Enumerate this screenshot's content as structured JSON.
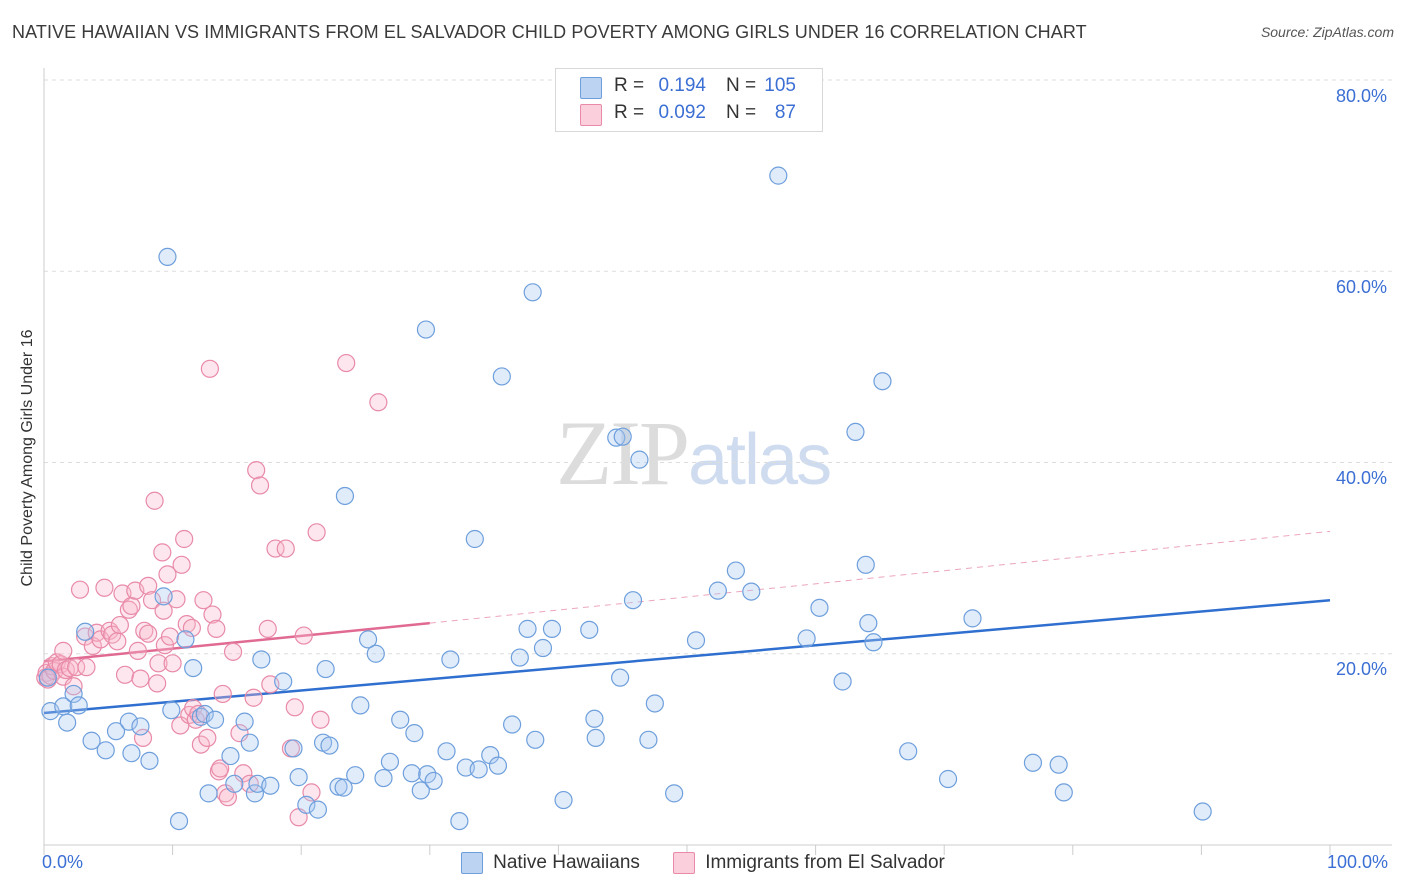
{
  "title": "NATIVE HAWAIIAN VS IMMIGRANTS FROM EL SALVADOR CHILD POVERTY AMONG GIRLS UNDER 16 CORRELATION CHART",
  "source": "Source: ZipAtlas.com",
  "watermark": {
    "zip": "ZIP",
    "atlas": "atlas"
  },
  "stats": [
    {
      "r_label": "R =",
      "r": "0.194",
      "n_label": "N =",
      "n": "105"
    },
    {
      "r_label": "R =",
      "r": "0.092",
      "n_label": "N =",
      "n": "87"
    }
  ],
  "legend": [
    "Native Hawaiians",
    "Immigrants from El Salvador"
  ],
  "colors": {
    "blue_fill": "#a8c8f0",
    "blue_stroke": "#6e9fdc",
    "blue_line": "#2f6fcf",
    "pink_fill": "#f8b8cc",
    "pink_stroke": "#e88aa8",
    "pink_line": "#e06a92",
    "axis_text": "#3b6fd4",
    "grid": "#dddddd"
  },
  "chart_data": {
    "type": "scatter",
    "title": "NATIVE HAWAIIAN VS IMMIGRANTS FROM EL SALVADOR CHILD POVERTY AMONG GIRLS UNDER 16 CORRELATION CHART",
    "xlabel": "",
    "ylabel": "Child Poverty Among Girls Under 16",
    "xlim": [
      0,
      100
    ],
    "ylim": [
      0,
      80
    ],
    "x_tick_labels": [
      "0.0%",
      "100.0%"
    ],
    "y_ticks": [
      20,
      40,
      60,
      80
    ],
    "y_tick_labels": [
      "20.0%",
      "40.0%",
      "60.0%",
      "80.0%"
    ],
    "series": [
      {
        "name": "Native Hawaiians",
        "R": 0.194,
        "N": 105,
        "trend": {
          "x": [
            0,
            100
          ],
          "y": [
            13.8,
            25.6
          ]
        },
        "points": [
          [
            0.3,
            17.5
          ],
          [
            0.5,
            14
          ],
          [
            1.5,
            14.5
          ],
          [
            1.8,
            12.8
          ],
          [
            2.3,
            15.8
          ],
          [
            2.7,
            14.6
          ],
          [
            3.2,
            22.3
          ],
          [
            3.7,
            10.9
          ],
          [
            4.8,
            9.9
          ],
          [
            5.6,
            11.9
          ],
          [
            6.6,
            12.9
          ],
          [
            6.8,
            9.6
          ],
          [
            7.5,
            12.4
          ],
          [
            8.2,
            8.8
          ],
          [
            9.3,
            26
          ],
          [
            9.6,
            61.5
          ],
          [
            9.9,
            14.1
          ],
          [
            10.5,
            2.5
          ],
          [
            11,
            21.5
          ],
          [
            11.6,
            18.5
          ],
          [
            12.2,
            13.4
          ],
          [
            12.5,
            13.7
          ],
          [
            12.8,
            5.4
          ],
          [
            13.3,
            13.1
          ],
          [
            14.5,
            9.3
          ],
          [
            14.8,
            6.4
          ],
          [
            15.6,
            12.9
          ],
          [
            16,
            10.7
          ],
          [
            16.4,
            5.4
          ],
          [
            16.6,
            6.4
          ],
          [
            16.9,
            19.4
          ],
          [
            17.6,
            6.2
          ],
          [
            18.6,
            17.1
          ],
          [
            19.4,
            10.1
          ],
          [
            19.8,
            7.1
          ],
          [
            20.4,
            4.2
          ],
          [
            21.3,
            3.7
          ],
          [
            21.7,
            10.7
          ],
          [
            21.9,
            18.4
          ],
          [
            22.2,
            10.4
          ],
          [
            22.9,
            6.1
          ],
          [
            23.3,
            6
          ],
          [
            23.4,
            36.5
          ],
          [
            24.2,
            7.3
          ],
          [
            24.6,
            14.6
          ],
          [
            25.2,
            21.5
          ],
          [
            25.8,
            20
          ],
          [
            26.4,
            7
          ],
          [
            26.9,
            8.7
          ],
          [
            27.7,
            13.1
          ],
          [
            28.6,
            7.5
          ],
          [
            28.8,
            11.7
          ],
          [
            29.3,
            5.7
          ],
          [
            29.8,
            7.4
          ],
          [
            29.7,
            53.9
          ],
          [
            30.3,
            6.7
          ],
          [
            31.3,
            9.8
          ],
          [
            31.6,
            19.4
          ],
          [
            32.3,
            2.5
          ],
          [
            32.8,
            8.1
          ],
          [
            33.5,
            32
          ],
          [
            33.8,
            7.9
          ],
          [
            34.7,
            9.4
          ],
          [
            35.3,
            8.3
          ],
          [
            35.6,
            49
          ],
          [
            36.4,
            12.6
          ],
          [
            37,
            19.6
          ],
          [
            37.6,
            22.6
          ],
          [
            38,
            57.8
          ],
          [
            38.2,
            11
          ],
          [
            38.8,
            20.6
          ],
          [
            39.5,
            22.6
          ],
          [
            40.4,
            4.7
          ],
          [
            42.4,
            22.5
          ],
          [
            42.8,
            13.2
          ],
          [
            42.9,
            11.2
          ],
          [
            44.5,
            42.6
          ],
          [
            44.8,
            17.5
          ],
          [
            45,
            42.7
          ],
          [
            45.8,
            25.6
          ],
          [
            46.3,
            40.3
          ],
          [
            47,
            11
          ],
          [
            47.5,
            14.8
          ],
          [
            49,
            5.4
          ],
          [
            50.7,
            21.4
          ],
          [
            52.4,
            26.6
          ],
          [
            53.8,
            28.7
          ],
          [
            55,
            26.5
          ],
          [
            57.1,
            70
          ],
          [
            59.3,
            21.6
          ],
          [
            60.3,
            24.8
          ],
          [
            62.1,
            17.1
          ],
          [
            63.1,
            43.2
          ],
          [
            63.9,
            29.3
          ],
          [
            64.1,
            23.2
          ],
          [
            64.5,
            21.2
          ],
          [
            65.2,
            48.5
          ],
          [
            67.2,
            9.8
          ],
          [
            70.3,
            6.9
          ],
          [
            72.2,
            23.7
          ],
          [
            76.9,
            8.6
          ],
          [
            78.9,
            8.4
          ],
          [
            79.3,
            5.5
          ],
          [
            90.1,
            3.5
          ]
        ]
      },
      {
        "name": "Immigrants from El Salvador",
        "R": 0.092,
        "N": 87,
        "trend": {
          "x": [
            0,
            30
          ],
          "y": [
            19.2,
            23.2
          ]
        },
        "trend_ext": {
          "x": [
            30,
            100
          ],
          "y": [
            23.2,
            32.8
          ]
        },
        "points": [
          [
            0.1,
            17.5
          ],
          [
            0.2,
            18
          ],
          [
            0.3,
            17.3
          ],
          [
            0.5,
            17.7
          ],
          [
            0.6,
            18.7
          ],
          [
            0.8,
            18.2
          ],
          [
            1,
            19.1
          ],
          [
            1.3,
            18.9
          ],
          [
            1.5,
            17.6
          ],
          [
            1.7,
            18.3
          ],
          [
            1.5,
            20.3
          ],
          [
            2,
            18.5
          ],
          [
            2.3,
            16.6
          ],
          [
            2.5,
            18.6
          ],
          [
            2.8,
            26.7
          ],
          [
            3.2,
            21.8
          ],
          [
            3.3,
            18.6
          ],
          [
            3.8,
            20.8
          ],
          [
            4.1,
            22.2
          ],
          [
            4.4,
            21.5
          ],
          [
            4.7,
            26.9
          ],
          [
            5.1,
            22.4
          ],
          [
            5.3,
            22
          ],
          [
            5.7,
            21.3
          ],
          [
            5.9,
            23
          ],
          [
            6.1,
            26.3
          ],
          [
            6.3,
            17.8
          ],
          [
            6.6,
            24.6
          ],
          [
            6.8,
            25
          ],
          [
            7.1,
            26.6
          ],
          [
            7.3,
            20.3
          ],
          [
            7.5,
            17.4
          ],
          [
            7.7,
            11.2
          ],
          [
            7.8,
            22.4
          ],
          [
            8.1,
            27.1
          ],
          [
            8.1,
            22.1
          ],
          [
            8.4,
            25.6
          ],
          [
            8.6,
            36
          ],
          [
            8.8,
            16.9
          ],
          [
            8.9,
            19
          ],
          [
            9.2,
            30.6
          ],
          [
            9.3,
            24.5
          ],
          [
            9.4,
            20.9
          ],
          [
            9.6,
            28.3
          ],
          [
            9.8,
            21.8
          ],
          [
            10,
            19
          ],
          [
            10.3,
            25.7
          ],
          [
            10.6,
            12.5
          ],
          [
            10.7,
            29.3
          ],
          [
            10.9,
            32
          ],
          [
            11.1,
            23.1
          ],
          [
            11.3,
            13.6
          ],
          [
            11.5,
            22.7
          ],
          [
            11.6,
            14.3
          ],
          [
            11.8,
            13.1
          ],
          [
            12,
            13.7
          ],
          [
            12.2,
            10.5
          ],
          [
            12.4,
            25.6
          ],
          [
            12.7,
            11.2
          ],
          [
            12.9,
            49.8
          ],
          [
            13.1,
            24.1
          ],
          [
            13.4,
            22.6
          ],
          [
            13.6,
            7.7
          ],
          [
            13.7,
            8
          ],
          [
            13.9,
            15.8
          ],
          [
            14.1,
            5.4
          ],
          [
            14.3,
            5
          ],
          [
            14.7,
            20.2
          ],
          [
            15.2,
            11.7
          ],
          [
            15.5,
            7.5
          ],
          [
            16,
            6.4
          ],
          [
            16.3,
            15.4
          ],
          [
            16.5,
            39.2
          ],
          [
            16.8,
            37.6
          ],
          [
            17.4,
            22.6
          ],
          [
            17.6,
            16.8
          ],
          [
            18,
            31
          ],
          [
            18.8,
            31
          ],
          [
            19.2,
            10.1
          ],
          [
            19.5,
            14.4
          ],
          [
            19.8,
            2.9
          ],
          [
            20.2,
            21.9
          ],
          [
            20.8,
            5.5
          ],
          [
            21.2,
            32.7
          ],
          [
            21.5,
            13.1
          ],
          [
            23.5,
            50.4
          ],
          [
            26,
            46.3
          ]
        ]
      }
    ]
  }
}
